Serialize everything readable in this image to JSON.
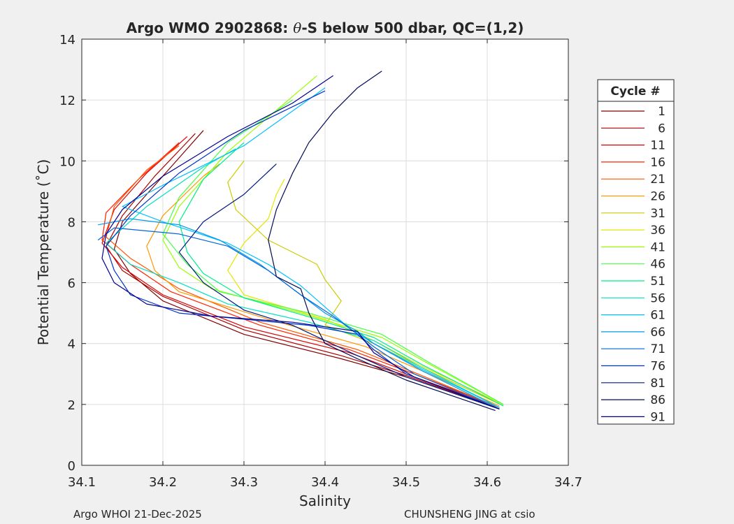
{
  "chart_data": {
    "type": "line",
    "title": "Argo WMO 2902868: θ-S below 500 dbar,  QC=(1,2)",
    "title_prefix": "Argo WMO 2902868: ",
    "title_theta": "θ",
    "title_suffix": "-S below 500 dbar,  QC=(1,2)",
    "xlabel": "Salinity",
    "ylabel": "Potential Temperature (˚C)",
    "xlim": [
      34.1,
      34.7
    ],
    "ylim": [
      0,
      14
    ],
    "xticks": [
      34.1,
      34.2,
      34.3,
      34.4,
      34.5,
      34.6,
      34.7
    ],
    "xtick_labels": [
      "34.1",
      "34.2",
      "34.3",
      "34.4",
      "34.5",
      "34.6",
      "34.7"
    ],
    "yticks": [
      0,
      2,
      4,
      6,
      8,
      10,
      12,
      14
    ],
    "ytick_labels": [
      "0",
      "2",
      "4",
      "6",
      "8",
      "10",
      "12",
      "14"
    ],
    "grid": true,
    "legend_title": "Cycle #",
    "legend_position": "right",
    "series": [
      {
        "name": "1",
        "color": "#800000",
        "points": [
          [
            34.615,
            1.85
          ],
          [
            34.5,
            2.9
          ],
          [
            34.42,
            3.5
          ],
          [
            34.3,
            4.3
          ],
          [
            34.2,
            5.4
          ],
          [
            34.16,
            6.3
          ],
          [
            34.14,
            7.1
          ],
          [
            34.15,
            8.0
          ],
          [
            34.19,
            9.2
          ],
          [
            34.25,
            11.0
          ]
        ]
      },
      {
        "name": "6",
        "color": "#b00000",
        "points": [
          [
            34.615,
            1.85
          ],
          [
            34.5,
            2.95
          ],
          [
            34.42,
            3.6
          ],
          [
            34.3,
            4.45
          ],
          [
            34.2,
            5.55
          ],
          [
            34.15,
            6.4
          ],
          [
            34.13,
            7.2
          ],
          [
            34.15,
            8.2
          ],
          [
            34.19,
            9.5
          ],
          [
            34.24,
            10.9
          ]
        ]
      },
      {
        "name": "11",
        "color": "#e00000",
        "points": [
          [
            34.615,
            1.9
          ],
          [
            34.5,
            3.0
          ],
          [
            34.43,
            3.7
          ],
          [
            34.3,
            4.55
          ],
          [
            34.2,
            5.6
          ],
          [
            34.15,
            6.5
          ],
          [
            34.125,
            7.3
          ],
          [
            34.14,
            8.4
          ],
          [
            34.18,
            9.6
          ],
          [
            34.23,
            10.8
          ]
        ]
      },
      {
        "name": "16",
        "color": "#ff2000",
        "points": [
          [
            34.615,
            1.9
          ],
          [
            34.51,
            3.0
          ],
          [
            34.43,
            3.8
          ],
          [
            34.32,
            4.6
          ],
          [
            34.21,
            5.7
          ],
          [
            34.16,
            6.6
          ],
          [
            34.125,
            7.4
          ],
          [
            34.13,
            8.3
          ],
          [
            34.17,
            9.4
          ],
          [
            34.22,
            10.6
          ]
        ]
      },
      {
        "name": "21",
        "color": "#ff5500",
        "points": [
          [
            34.615,
            1.9
          ],
          [
            34.51,
            3.05
          ],
          [
            34.44,
            3.8
          ],
          [
            34.32,
            4.7
          ],
          [
            34.22,
            5.8
          ],
          [
            34.16,
            6.8
          ],
          [
            34.13,
            7.5
          ],
          [
            34.14,
            8.5
          ],
          [
            34.18,
            9.7
          ],
          [
            34.22,
            10.5
          ]
        ]
      },
      {
        "name": "26",
        "color": "#ff9900",
        "points": [
          [
            34.615,
            1.95
          ],
          [
            34.52,
            3.1
          ],
          [
            34.45,
            3.9
          ],
          [
            34.33,
            4.8
          ],
          [
            34.22,
            5.7
          ],
          [
            34.19,
            6.4
          ],
          [
            34.18,
            7.2
          ],
          [
            34.2,
            8.2
          ],
          [
            34.25,
            9.5
          ],
          [
            34.27,
            9.9
          ]
        ]
      },
      {
        "name": "31",
        "color": "#cccc00",
        "points": [
          [
            34.62,
            1.95
          ],
          [
            34.52,
            3.2
          ],
          [
            34.46,
            4.0
          ],
          [
            34.4,
            4.6
          ],
          [
            34.42,
            5.4
          ],
          [
            34.4,
            6.1
          ],
          [
            34.39,
            6.6
          ],
          [
            34.33,
            7.4
          ],
          [
            34.29,
            8.4
          ],
          [
            34.28,
            9.3
          ],
          [
            34.3,
            10.0
          ]
        ]
      },
      {
        "name": "36",
        "color": "#e6e600",
        "points": [
          [
            34.62,
            2.0
          ],
          [
            34.52,
            3.25
          ],
          [
            34.46,
            4.1
          ],
          [
            34.4,
            4.8
          ],
          [
            34.3,
            5.6
          ],
          [
            34.28,
            6.4
          ],
          [
            34.3,
            7.3
          ],
          [
            34.33,
            8.1
          ],
          [
            34.34,
            8.9
          ],
          [
            34.35,
            9.4
          ]
        ]
      },
      {
        "name": "41",
        "color": "#99ff00",
        "points": [
          [
            34.62,
            2.0
          ],
          [
            34.53,
            3.3
          ],
          [
            34.47,
            4.2
          ],
          [
            34.37,
            5.0
          ],
          [
            34.26,
            5.8
          ],
          [
            34.22,
            6.5
          ],
          [
            34.2,
            7.4
          ],
          [
            34.22,
            8.5
          ],
          [
            34.28,
            10.3
          ],
          [
            34.39,
            12.8
          ]
        ]
      },
      {
        "name": "46",
        "color": "#44ff44",
        "points": [
          [
            34.62,
            2.0
          ],
          [
            34.53,
            3.35
          ],
          [
            34.47,
            4.3
          ],
          [
            34.38,
            5.0
          ],
          [
            34.27,
            5.7
          ],
          [
            34.23,
            6.6
          ],
          [
            34.2,
            7.6
          ],
          [
            34.22,
            8.8
          ],
          [
            34.28,
            10.6
          ],
          [
            34.36,
            12.0
          ]
        ]
      },
      {
        "name": "51",
        "color": "#00ee88",
        "points": [
          [
            34.62,
            1.95
          ],
          [
            34.52,
            3.3
          ],
          [
            34.46,
            4.2
          ],
          [
            34.39,
            4.8
          ],
          [
            34.3,
            5.5
          ],
          [
            34.25,
            6.3
          ],
          [
            34.23,
            7.0
          ],
          [
            34.22,
            8.0
          ],
          [
            34.25,
            9.4
          ],
          [
            34.3,
            10.6
          ]
        ]
      },
      {
        "name": "56",
        "color": "#00e0c0",
        "points": [
          [
            34.615,
            1.9
          ],
          [
            34.52,
            3.2
          ],
          [
            34.46,
            4.1
          ],
          [
            34.38,
            4.7
          ],
          [
            34.28,
            5.3
          ],
          [
            34.22,
            6.0
          ],
          [
            34.16,
            6.6
          ],
          [
            34.13,
            7.3
          ],
          [
            34.18,
            8.5
          ],
          [
            34.25,
            9.8
          ],
          [
            34.29,
            10.4
          ]
        ]
      },
      {
        "name": "61",
        "color": "#00bfff",
        "points": [
          [
            34.615,
            1.9
          ],
          [
            34.52,
            3.15
          ],
          [
            34.46,
            4.0
          ],
          [
            34.43,
            4.5
          ],
          [
            34.4,
            5.2
          ],
          [
            34.37,
            5.9
          ],
          [
            34.33,
            6.6
          ],
          [
            34.28,
            7.3
          ],
          [
            34.2,
            8.0
          ],
          [
            34.15,
            8.5
          ],
          [
            34.2,
            9.2
          ],
          [
            34.3,
            10.5
          ],
          [
            34.4,
            12.4
          ]
        ]
      },
      {
        "name": "66",
        "color": "#0099ee",
        "points": [
          [
            34.615,
            1.85
          ],
          [
            34.52,
            3.1
          ],
          [
            34.46,
            4.0
          ],
          [
            34.44,
            4.4
          ],
          [
            34.4,
            5.0
          ],
          [
            34.36,
            5.8
          ],
          [
            34.32,
            6.6
          ],
          [
            34.27,
            7.4
          ],
          [
            34.22,
            7.9
          ],
          [
            34.16,
            8.1
          ],
          [
            34.12,
            7.9
          ]
        ]
      },
      {
        "name": "71",
        "color": "#0066dd",
        "points": [
          [
            34.615,
            1.85
          ],
          [
            34.51,
            3.0
          ],
          [
            34.46,
            3.9
          ],
          [
            34.44,
            4.3
          ],
          [
            34.41,
            4.9
          ],
          [
            34.37,
            5.6
          ],
          [
            34.33,
            6.4
          ],
          [
            34.28,
            7.2
          ],
          [
            34.22,
            7.6
          ],
          [
            34.14,
            7.8
          ],
          [
            34.12,
            7.4
          ]
        ]
      },
      {
        "name": "76",
        "color": "#0033cc",
        "points": [
          [
            34.615,
            1.85
          ],
          [
            34.5,
            3.0
          ],
          [
            34.46,
            3.8
          ],
          [
            34.44,
            4.3
          ],
          [
            34.38,
            4.6
          ],
          [
            34.3,
            4.8
          ],
          [
            34.22,
            5.0
          ],
          [
            34.16,
            5.6
          ],
          [
            34.14,
            6.4
          ],
          [
            34.13,
            7.2
          ],
          [
            34.16,
            8.2
          ],
          [
            34.22,
            9.6
          ],
          [
            34.3,
            11.0
          ],
          [
            34.4,
            12.3
          ]
        ]
      },
      {
        "name": "81",
        "color": "#001a80",
        "points": [
          [
            34.615,
            1.85
          ],
          [
            34.5,
            2.9
          ],
          [
            34.44,
            3.6
          ],
          [
            34.4,
            4.1
          ],
          [
            34.36,
            4.6
          ],
          [
            34.3,
            5.1
          ],
          [
            34.25,
            6.0
          ],
          [
            34.22,
            7.0
          ],
          [
            34.25,
            8.0
          ],
          [
            34.3,
            8.9
          ],
          [
            34.34,
            9.9
          ]
        ]
      },
      {
        "name": "86",
        "color": "#000a55",
        "points": [
          [
            34.61,
            1.8
          ],
          [
            34.5,
            2.8
          ],
          [
            34.44,
            3.5
          ],
          [
            34.4,
            4.0
          ],
          [
            34.38,
            5.0
          ],
          [
            34.37,
            5.8
          ],
          [
            34.34,
            6.2
          ],
          [
            34.33,
            7.4
          ],
          [
            34.34,
            8.4
          ],
          [
            34.36,
            9.6
          ],
          [
            34.38,
            10.6
          ],
          [
            34.41,
            11.6
          ],
          [
            34.44,
            12.4
          ],
          [
            34.47,
            12.95
          ]
        ]
      },
      {
        "name": "91",
        "color": "#000090",
        "points": [
          [
            34.615,
            1.85
          ],
          [
            34.51,
            2.9
          ],
          [
            34.46,
            3.7
          ],
          [
            34.44,
            4.4
          ],
          [
            34.36,
            4.7
          ],
          [
            34.26,
            4.9
          ],
          [
            34.18,
            5.3
          ],
          [
            34.14,
            6.0
          ],
          [
            34.125,
            6.8
          ],
          [
            34.13,
            7.6
          ],
          [
            34.15,
            8.4
          ],
          [
            34.2,
            9.5
          ],
          [
            34.28,
            10.8
          ],
          [
            34.36,
            11.9
          ],
          [
            34.41,
            12.8
          ]
        ]
      }
    ]
  },
  "footer": {
    "left": "Argo WHOI 21-Dec-2025",
    "right": "CHUNSHENG JING at csio"
  }
}
